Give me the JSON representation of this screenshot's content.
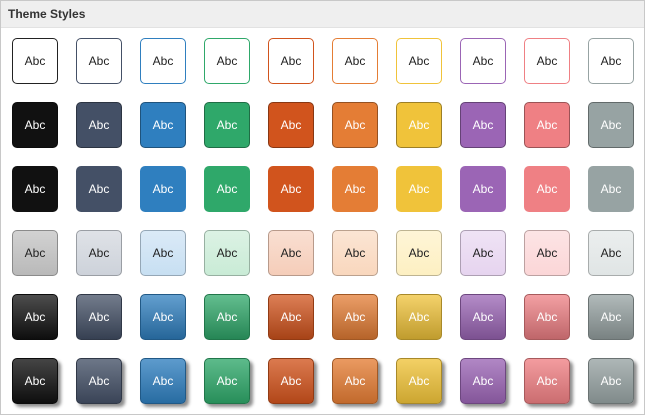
{
  "panel": {
    "title": "Theme Styles"
  },
  "label": "Abc",
  "colors": [
    "#111111",
    "#445066",
    "#2f7fbf",
    "#2fa86a",
    "#d1541d",
    "#e47d35",
    "#f0c33a",
    "#9b65b5",
    "#ef8084",
    "#97a3a3"
  ],
  "light_colors": [
    "#b9b9b9",
    "#cdd2da",
    "#c7dff2",
    "#c9ebd6",
    "#f5cdb9",
    "#f9d7bd",
    "#fdf0c2",
    "#e6d4ef",
    "#fbd6d7",
    "#e0e5e5"
  ],
  "rows": [
    {
      "style": "outline"
    },
    {
      "style": "filled-border"
    },
    {
      "style": "filled"
    },
    {
      "style": "light-gradient"
    },
    {
      "style": "dark-gradient"
    },
    {
      "style": "gradient-shadow"
    }
  ]
}
